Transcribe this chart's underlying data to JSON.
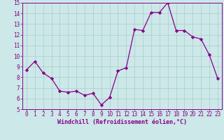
{
  "x": [
    0,
    1,
    2,
    3,
    4,
    5,
    6,
    7,
    8,
    9,
    10,
    11,
    12,
    13,
    14,
    15,
    16,
    17,
    18,
    19,
    20,
    21,
    22,
    23
  ],
  "y": [
    8.7,
    9.5,
    8.4,
    7.9,
    6.7,
    6.6,
    6.7,
    6.3,
    6.5,
    5.4,
    6.1,
    8.6,
    8.9,
    12.5,
    12.4,
    14.1,
    14.1,
    15.0,
    12.4,
    12.4,
    11.8,
    11.6,
    10.1,
    7.9
  ],
  "xlabel": "Windchill (Refroidissement éolien,°C)",
  "ylim": [
    5,
    15
  ],
  "xlim": [
    -0.5,
    23.5
  ],
  "yticks": [
    5,
    6,
    7,
    8,
    9,
    10,
    11,
    12,
    13,
    14,
    15
  ],
  "xticks": [
    0,
    1,
    2,
    3,
    4,
    5,
    6,
    7,
    8,
    9,
    10,
    11,
    12,
    13,
    14,
    15,
    16,
    17,
    18,
    19,
    20,
    21,
    22,
    23
  ],
  "line_color": "#880088",
  "marker": "D",
  "marker_size": 2.2,
  "bg_color": "#cce8e8",
  "grid_color": "#aacccc",
  "tick_color": "#880088",
  "label_color": "#880088",
  "font_family": "monospace",
  "tick_fontsize": 5.5,
  "xlabel_fontsize": 6.0
}
